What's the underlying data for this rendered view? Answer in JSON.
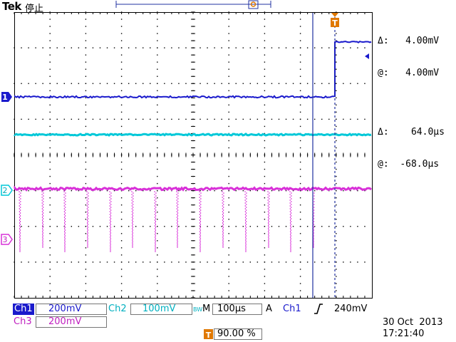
{
  "header": {
    "brand": "Tek",
    "acq_state": "停止"
  },
  "cursor_readout": {
    "v_delta": "4.00mV",
    "v_at": "4.00mV",
    "t_delta": "64.0µs",
    "t_at": "-68.0µs",
    "delta_symbol": "Δ:",
    "at_symbol": "@:"
  },
  "markers": {
    "trigger": "T",
    "ch1": "1",
    "ch2": "2",
    "ch3": "3"
  },
  "status_bar": {
    "ch1_label": "Ch1",
    "ch1_scale": "200mV",
    "ch2_label": "Ch2",
    "ch2_scale": "100mV",
    "bw_label": "BW",
    "timebase_label": "M",
    "timebase": "100µs",
    "trigger_mode": "A",
    "trigger_source": "Ch1",
    "trigger_level": "240mV",
    "ch3_label": "Ch3",
    "ch3_scale": "200mV",
    "trigger_position_tag": "T",
    "trigger_position": "90.00 %",
    "date": "30 Oct  2013",
    "time": "17:21:40"
  },
  "colors": {
    "ch1": "#1a1acc",
    "ch2": "#00c8d8",
    "ch3": "#d830d8",
    "trigger": "#e07800",
    "grid": "#000000",
    "cursor": "#2030a0"
  }
}
